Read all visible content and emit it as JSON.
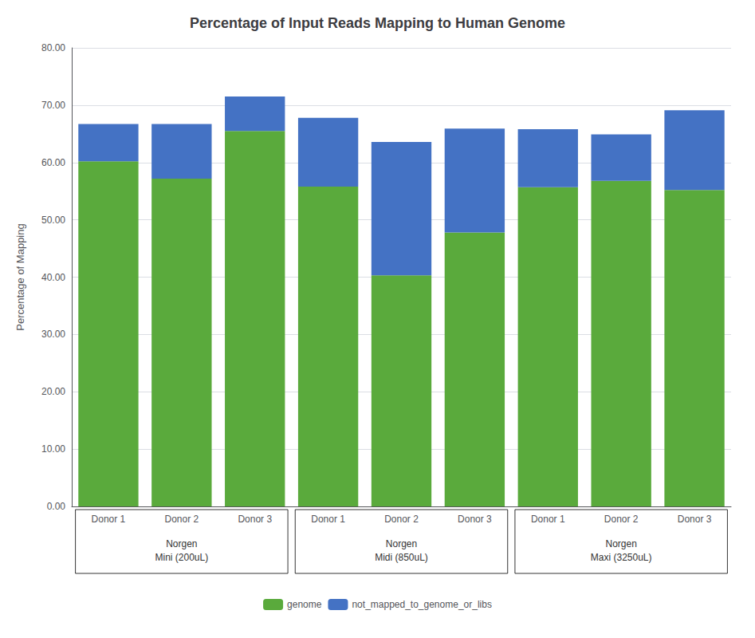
{
  "chart_data": {
    "type": "bar",
    "title": "Percentage of Input Reads Mapping to Human Genome",
    "ylabel": "Percentage of Mapping",
    "categories": [
      "Donor 1",
      "Donor 2",
      "Donor 3",
      "Donor 1",
      "Donor 2",
      "Donor 3",
      "Donor 1",
      "Donor 2",
      "Donor 3"
    ],
    "category_groups": [
      [
        "Norgen",
        "Mini (200uL)"
      ],
      [
        "Norgen",
        "Midi (850uL)"
      ],
      [
        "Norgen",
        "Maxi (3250uL)"
      ]
    ],
    "series": [
      {
        "name": "genome",
        "color": "#5aaa3c",
        "values": [
          60.2,
          57.2,
          65.5,
          55.8,
          40.3,
          47.8,
          55.7,
          56.8,
          55.2
        ]
      },
      {
        "name": "not_mapped_to_genome_or_libs",
        "color": "#4472c4",
        "values": [
          6.5,
          9.5,
          6.0,
          12.0,
          23.3,
          18.1,
          10.1,
          8.1,
          13.9
        ]
      }
    ],
    "stacked": true,
    "ylim": [
      0,
      80
    ],
    "yticks": [
      {
        "value": 0,
        "label": "0.00"
      },
      {
        "value": 10,
        "label": "10.00"
      },
      {
        "value": 20,
        "label": "20.00"
      },
      {
        "value": 30,
        "label": "30.00"
      },
      {
        "value": 40,
        "label": "40.00"
      },
      {
        "value": 50,
        "label": "50.00"
      },
      {
        "value": 60,
        "label": "60.00"
      },
      {
        "value": 70,
        "label": "70.00"
      },
      {
        "value": 80,
        "label": "80.00"
      }
    ],
    "grid": true,
    "legend": "bottom"
  }
}
